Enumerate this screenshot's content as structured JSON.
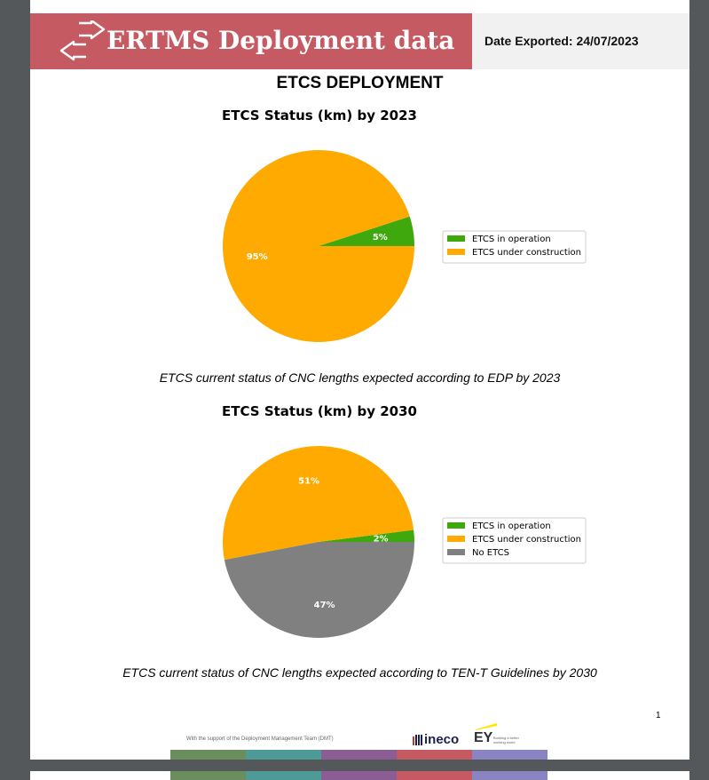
{
  "header": {
    "title": "ERTMS Deployment data",
    "export_label": "Date Exported: 24/07/2023",
    "banner_color": "#c55a63"
  },
  "page_title": "ETCS DEPLOYMENT",
  "chart_data": [
    {
      "type": "pie",
      "title": "ETCS Status (km) by 2023",
      "categories": [
        "ETCS in operation",
        "ETCS under construction"
      ],
      "values": [
        5,
        95
      ],
      "labels": [
        "5%",
        "95%"
      ],
      "colors": [
        "#3fa80c",
        "#ffaa00"
      ],
      "legend": "right"
    },
    {
      "type": "pie",
      "title": "ETCS Status (km) by 2030",
      "categories": [
        "ETCS in operation",
        "ETCS under construction",
        "No ETCS"
      ],
      "values": [
        2,
        51,
        47
      ],
      "labels": [
        "2%",
        "51%",
        "47%"
      ],
      "colors": [
        "#3fa80c",
        "#ffaa00",
        "#808080"
      ],
      "legend": "right"
    }
  ],
  "captions": {
    "chart1": "ETCS current status of CNC lengths expected according to EDP by 2023",
    "chart2": "ETCS current status of CNC lengths expected according to TEN-T Guidelines by 2030"
  },
  "footer": {
    "page_number": "1",
    "support_text": "With the support of the Deployment Management Team (DMT)",
    "ineco_logo": "ineco",
    "ey_logo": "EY",
    "ey_tagline": "Building a better working world",
    "bar_colors": [
      "#6b8e5f",
      "#4e9a96",
      "#8a5d94",
      "#c55a63",
      "#8a84c2"
    ]
  }
}
